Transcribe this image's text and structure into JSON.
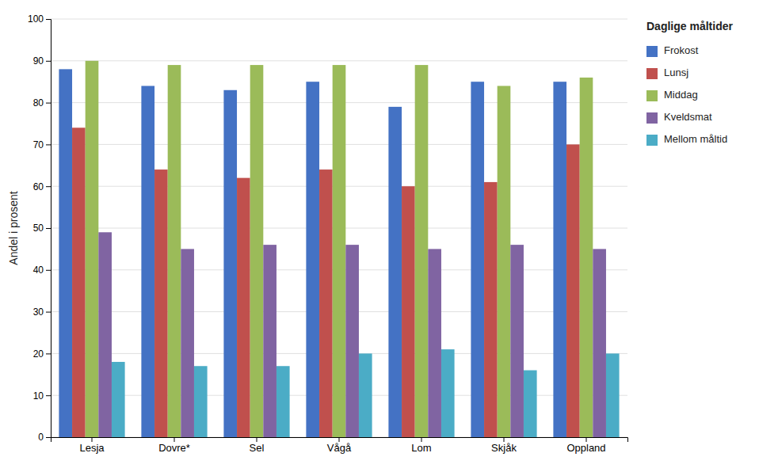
{
  "chart_data": {
    "type": "bar",
    "y_label": "Andel i prosent",
    "legend_title": "Daglige måltider",
    "categories": [
      "Lesja",
      "Dovre*",
      "Sel",
      "Vågå",
      "Lom",
      "Skjåk",
      "Oppland"
    ],
    "series": [
      {
        "name": "Frokost",
        "color": "#4472C4",
        "values": [
          88,
          84,
          83,
          85,
          79,
          85,
          85
        ]
      },
      {
        "name": "Lunsj",
        "color": "#C0504D",
        "values": [
          74,
          64,
          62,
          64,
          60,
          61,
          70
        ]
      },
      {
        "name": "Middag",
        "color": "#9BBB59",
        "values": [
          90,
          89,
          89,
          89,
          89,
          84,
          86
        ]
      },
      {
        "name": "Kveldsmat",
        "color": "#8064A2",
        "values": [
          49,
          45,
          46,
          46,
          45,
          46,
          45
        ]
      },
      {
        "name": "Mellom måltid",
        "color": "#4BACC6",
        "values": [
          18,
          17,
          17,
          20,
          21,
          16,
          20
        ]
      }
    ],
    "ylim": [
      0,
      100
    ],
    "yticks": [
      0,
      10,
      20,
      30,
      40,
      50,
      60,
      70,
      80,
      90,
      100
    ],
    "grid": true,
    "legend": "right"
  }
}
